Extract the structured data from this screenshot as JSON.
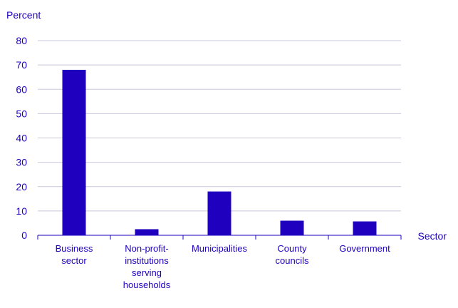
{
  "chart_data": {
    "type": "bar",
    "title": "",
    "ylabel": "Percent",
    "xlabel": "Sector",
    "ylim": [
      0,
      80
    ],
    "yticks": [
      0,
      10,
      20,
      30,
      40,
      50,
      60,
      70,
      80
    ],
    "grid": true,
    "legend": "none",
    "categories": [
      [
        "Business",
        "sector"
      ],
      [
        "Non-profit-",
        "institutions",
        "serving",
        "households"
      ],
      [
        "Municipalities"
      ],
      [
        "County",
        "councils"
      ],
      [
        "Government"
      ]
    ],
    "values": [
      68,
      2.5,
      18,
      6,
      5.7
    ],
    "colors": {
      "bar": "#1e00be",
      "text": "#1e00be",
      "grid": "#c8c8dc",
      "axis": "#1e00be"
    }
  }
}
